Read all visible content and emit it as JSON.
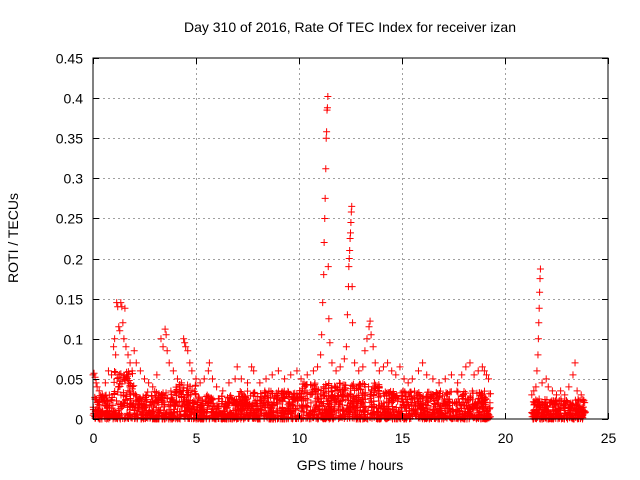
{
  "chart_data": {
    "type": "scatter",
    "title": "Day 310 of 2016, Rate Of TEC Index for receiver izan",
    "xlabel": "GPS time / hours",
    "ylabel": "ROTI / TECUs",
    "xlim": [
      0,
      25
    ],
    "ylim": [
      0,
      0.45
    ],
    "xticks": [
      0,
      5,
      10,
      15,
      20,
      25
    ],
    "xtick_labels": [
      "0",
      "5",
      "10",
      "15",
      "20",
      "25"
    ],
    "yticks": [
      0,
      0.05,
      0.1,
      0.15,
      0.2,
      0.25,
      0.3,
      0.35,
      0.4,
      0.45
    ],
    "ytick_labels": [
      "0",
      "0.05",
      "0.1",
      "0.15",
      "0.2",
      "0.25",
      "0.3",
      "0.35",
      "0.4",
      "0.45"
    ],
    "grid": true,
    "marker": "plus",
    "color": "#ff0000",
    "series": [
      {
        "name": "ROTI",
        "points": [
          [
            0.0,
            0.055
          ],
          [
            0.05,
            0.057
          ],
          [
            0.1,
            0.052
          ],
          [
            0.15,
            0.045
          ],
          [
            0.2,
            0.04
          ],
          [
            0.3,
            0.035
          ],
          [
            0.45,
            0.03
          ],
          [
            0.6,
            0.045
          ],
          [
            0.75,
            0.06
          ],
          [
            0.9,
            0.055
          ],
          [
            1.0,
            0.09
          ],
          [
            1.05,
            0.1
          ],
          [
            1.1,
            0.08
          ],
          [
            1.15,
            0.145
          ],
          [
            1.2,
            0.14
          ],
          [
            1.25,
            0.115
          ],
          [
            1.3,
            0.11
          ],
          [
            1.35,
            0.145
          ],
          [
            1.4,
            0.14
          ],
          [
            1.45,
            0.12
          ],
          [
            1.5,
            0.1
          ],
          [
            1.55,
            0.138
          ],
          [
            1.6,
            0.09
          ],
          [
            1.7,
            0.08
          ],
          [
            1.8,
            0.07
          ],
          [
            1.9,
            0.06
          ],
          [
            2.0,
            0.085
          ],
          [
            2.1,
            0.07
          ],
          [
            2.3,
            0.06
          ],
          [
            2.5,
            0.05
          ],
          [
            2.7,
            0.045
          ],
          [
            2.9,
            0.04
          ],
          [
            3.1,
            0.055
          ],
          [
            3.3,
            0.1
          ],
          [
            3.4,
            0.09
          ],
          [
            3.5,
            0.112
          ],
          [
            3.55,
            0.105
          ],
          [
            3.6,
            0.085
          ],
          [
            3.7,
            0.07
          ],
          [
            3.9,
            0.06
          ],
          [
            4.1,
            0.05
          ],
          [
            4.3,
            0.045
          ],
          [
            4.4,
            0.1
          ],
          [
            4.45,
            0.095
          ],
          [
            4.5,
            0.09
          ],
          [
            4.6,
            0.085
          ],
          [
            4.7,
            0.07
          ],
          [
            4.8,
            0.06
          ],
          [
            5.0,
            0.05
          ],
          [
            5.2,
            0.045
          ],
          [
            5.4,
            0.05
          ],
          [
            5.6,
            0.06
          ],
          [
            5.65,
            0.07
          ],
          [
            5.8,
            0.05
          ],
          [
            6.0,
            0.04
          ],
          [
            6.3,
            0.035
          ],
          [
            6.6,
            0.045
          ],
          [
            6.9,
            0.05
          ],
          [
            7.0,
            0.065
          ],
          [
            7.2,
            0.05
          ],
          [
            7.5,
            0.045
          ],
          [
            7.7,
            0.065
          ],
          [
            7.8,
            0.06
          ],
          [
            8.1,
            0.045
          ],
          [
            8.4,
            0.05
          ],
          [
            8.7,
            0.055
          ],
          [
            9.0,
            0.06
          ],
          [
            9.3,
            0.05
          ],
          [
            9.6,
            0.055
          ],
          [
            9.9,
            0.06
          ],
          [
            10.1,
            0.05
          ],
          [
            10.4,
            0.055
          ],
          [
            10.7,
            0.06
          ],
          [
            10.9,
            0.065
          ],
          [
            11.05,
            0.08
          ],
          [
            11.1,
            0.105
          ],
          [
            11.15,
            0.145
          ],
          [
            11.2,
            0.18
          ],
          [
            11.22,
            0.22
          ],
          [
            11.25,
            0.25
          ],
          [
            11.27,
            0.275
          ],
          [
            11.3,
            0.312
          ],
          [
            11.32,
            0.35
          ],
          [
            11.34,
            0.358
          ],
          [
            11.36,
            0.385
          ],
          [
            11.38,
            0.388
          ],
          [
            11.4,
            0.402
          ],
          [
            11.42,
            0.19
          ],
          [
            11.45,
            0.125
          ],
          [
            11.5,
            0.095
          ],
          [
            11.6,
            0.07
          ],
          [
            11.8,
            0.06
          ],
          [
            12.0,
            0.065
          ],
          [
            12.2,
            0.075
          ],
          [
            12.3,
            0.09
          ],
          [
            12.35,
            0.13
          ],
          [
            12.4,
            0.165
          ],
          [
            12.42,
            0.19
          ],
          [
            12.44,
            0.2
          ],
          [
            12.46,
            0.21
          ],
          [
            12.48,
            0.225
          ],
          [
            12.5,
            0.232
          ],
          [
            12.52,
            0.245
          ],
          [
            12.54,
            0.258
          ],
          [
            12.56,
            0.265
          ],
          [
            12.58,
            0.165
          ],
          [
            12.6,
            0.12
          ],
          [
            12.7,
            0.07
          ],
          [
            12.9,
            0.06
          ],
          [
            13.1,
            0.065
          ],
          [
            13.2,
            0.085
          ],
          [
            13.3,
            0.1
          ],
          [
            13.4,
            0.115
          ],
          [
            13.45,
            0.122
          ],
          [
            13.5,
            0.105
          ],
          [
            13.6,
            0.09
          ],
          [
            13.7,
            0.07
          ],
          [
            13.9,
            0.06
          ],
          [
            14.1,
            0.065
          ],
          [
            14.3,
            0.07
          ],
          [
            14.5,
            0.06
          ],
          [
            14.7,
            0.055
          ],
          [
            14.9,
            0.065
          ],
          [
            15.1,
            0.05
          ],
          [
            15.3,
            0.045
          ],
          [
            15.5,
            0.05
          ],
          [
            15.8,
            0.06
          ],
          [
            16.0,
            0.07
          ],
          [
            16.2,
            0.055
          ],
          [
            16.5,
            0.05
          ],
          [
            16.8,
            0.045
          ],
          [
            17.1,
            0.05
          ],
          [
            17.4,
            0.055
          ],
          [
            17.7,
            0.045
          ],
          [
            17.9,
            0.055
          ],
          [
            18.1,
            0.065
          ],
          [
            18.3,
            0.07
          ],
          [
            18.5,
            0.055
          ],
          [
            18.7,
            0.06
          ],
          [
            18.9,
            0.065
          ],
          [
            19.0,
            0.06
          ],
          [
            19.1,
            0.055
          ],
          [
            19.2,
            0.05
          ],
          [
            21.3,
            0.03
          ],
          [
            21.4,
            0.035
          ],
          [
            21.5,
            0.04
          ],
          [
            21.55,
            0.06
          ],
          [
            21.6,
            0.08
          ],
          [
            21.62,
            0.1
          ],
          [
            21.64,
            0.12
          ],
          [
            21.66,
            0.138
          ],
          [
            21.68,
            0.158
          ],
          [
            21.7,
            0.175
          ],
          [
            21.72,
            0.187
          ],
          [
            21.8,
            0.045
          ],
          [
            22.0,
            0.05
          ],
          [
            22.1,
            0.04
          ],
          [
            22.3,
            0.035
          ],
          [
            22.5,
            0.03
          ],
          [
            22.7,
            0.035
          ],
          [
            22.9,
            0.03
          ],
          [
            23.1,
            0.04
          ],
          [
            23.3,
            0.055
          ],
          [
            23.4,
            0.07
          ],
          [
            23.5,
            0.035
          ],
          [
            23.7,
            0.03
          ]
        ],
        "bands": [
          {
            "x": [
              0.0,
              1.0
            ],
            "y": [
              0.0,
              0.03
            ]
          },
          {
            "x": [
              1.0,
              2.0
            ],
            "y": [
              0.0,
              0.06
            ]
          },
          {
            "x": [
              2.0,
              4.0
            ],
            "y": [
              0.0,
              0.035
            ]
          },
          {
            "x": [
              4.0,
              5.0
            ],
            "y": [
              0.0,
              0.045
            ]
          },
          {
            "x": [
              5.0,
              7.0
            ],
            "y": [
              0.0,
              0.03
            ]
          },
          {
            "x": [
              7.0,
              10.0
            ],
            "y": [
              0.0,
              0.035
            ]
          },
          {
            "x": [
              10.0,
              11.5
            ],
            "y": [
              0.0,
              0.045
            ]
          },
          {
            "x": [
              11.5,
              14.0
            ],
            "y": [
              0.0,
              0.045
            ]
          },
          {
            "x": [
              14.0,
              16.0
            ],
            "y": [
              0.0,
              0.035
            ]
          },
          {
            "x": [
              16.0,
              19.3
            ],
            "y": [
              0.0,
              0.035
            ]
          },
          {
            "x": [
              21.3,
              23.9
            ],
            "y": [
              0.0,
              0.025
            ]
          }
        ]
      }
    ]
  }
}
